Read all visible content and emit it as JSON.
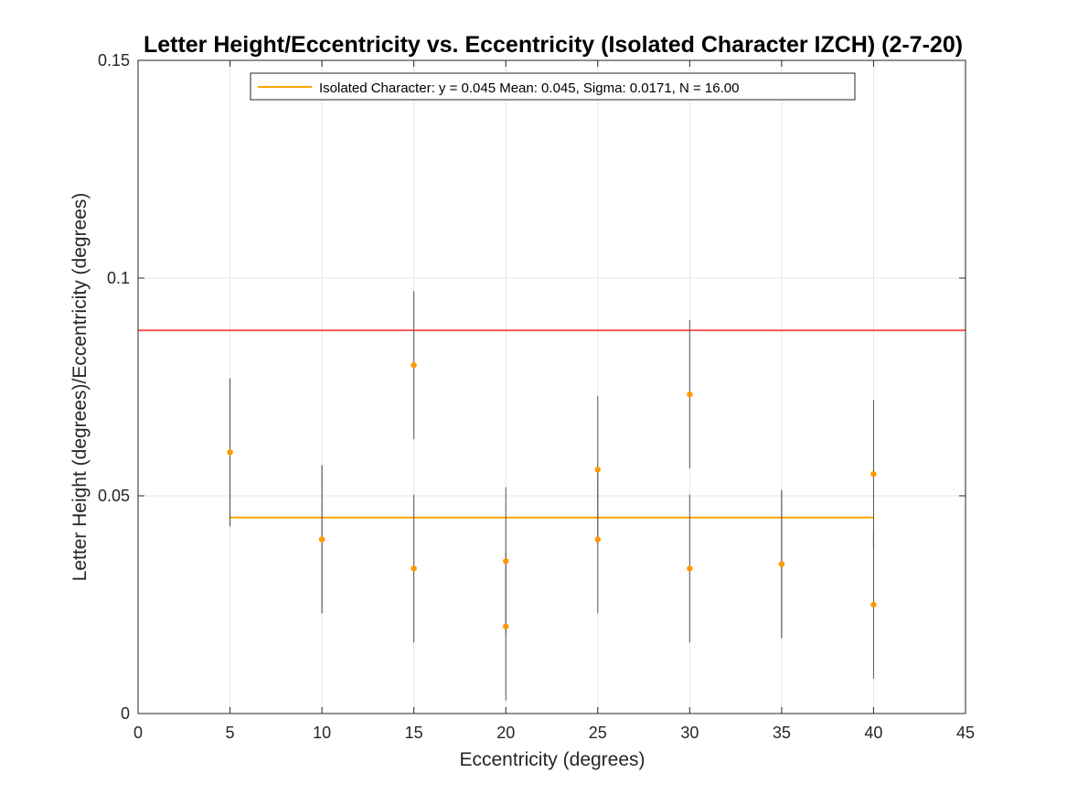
{
  "chart_data": {
    "type": "scatter",
    "title": "Letter Height/Eccentricity vs. Eccentricity (Isolated Character IZCH) (2-7-20)",
    "xlabel": "Eccentricity (degrees)",
    "ylabel": "Letter Height (degrees)/Eccentricity (degrees)",
    "xlim": [
      0,
      45
    ],
    "ylim": [
      0,
      0.15
    ],
    "xticks": [
      0,
      5,
      10,
      15,
      20,
      25,
      30,
      35,
      40,
      45
    ],
    "xtick_labels": [
      "0",
      "5",
      "10",
      "15",
      "20",
      "25",
      "30",
      "35",
      "40",
      "45"
    ],
    "yticks": [
      0,
      0.05,
      0.1,
      0.15
    ],
    "ytick_labels": [
      "0",
      "0.05",
      "0.1",
      "0.15"
    ],
    "grid": true,
    "legend_position": "top",
    "points": [
      {
        "x": 5,
        "y": 0.06,
        "err": 0.017
      },
      {
        "x": 5,
        "y": 0.06,
        "err": 0.017
      },
      {
        "x": 10,
        "y": 0.04,
        "err": 0.017
      },
      {
        "x": 10,
        "y": 0.04,
        "err": 0.017
      },
      {
        "x": 15,
        "y": 0.08,
        "err": 0.017
      },
      {
        "x": 15,
        "y": 0.0333,
        "err": 0.017
      },
      {
        "x": 20,
        "y": 0.035,
        "err": 0.017
      },
      {
        "x": 20,
        "y": 0.02,
        "err": 0.017
      },
      {
        "x": 25,
        "y": 0.056,
        "err": 0.017
      },
      {
        "x": 25,
        "y": 0.04,
        "err": 0.017
      },
      {
        "x": 30,
        "y": 0.0733,
        "err": 0.017
      },
      {
        "x": 30,
        "y": 0.0333,
        "err": 0.017
      },
      {
        "x": 35,
        "y": 0.0343,
        "err": 0.017
      },
      {
        "x": 35,
        "y": 0.0343,
        "err": 0.017
      },
      {
        "x": 40,
        "y": 0.055,
        "err": 0.017
      },
      {
        "x": 40,
        "y": 0.025,
        "err": 0.017
      }
    ],
    "series": [
      {
        "name": "Isolated Character: y = 0.045 Mean: 0.045, Sigma: 0.0171, N = 16.00",
        "type": "horizontal_line",
        "y": 0.045,
        "x_range": [
          5,
          40
        ],
        "color": "#ffa500"
      },
      {
        "type": "horizontal_line",
        "y": 0.088,
        "x_range": [
          0,
          45
        ],
        "color": "#ff5555"
      }
    ],
    "colors": {
      "points": "#ff9900",
      "error_bars": "#555555",
      "mean_line": "#ffa500",
      "threshold_line": "#ff5555",
      "grid": "#e6e6e6"
    }
  }
}
